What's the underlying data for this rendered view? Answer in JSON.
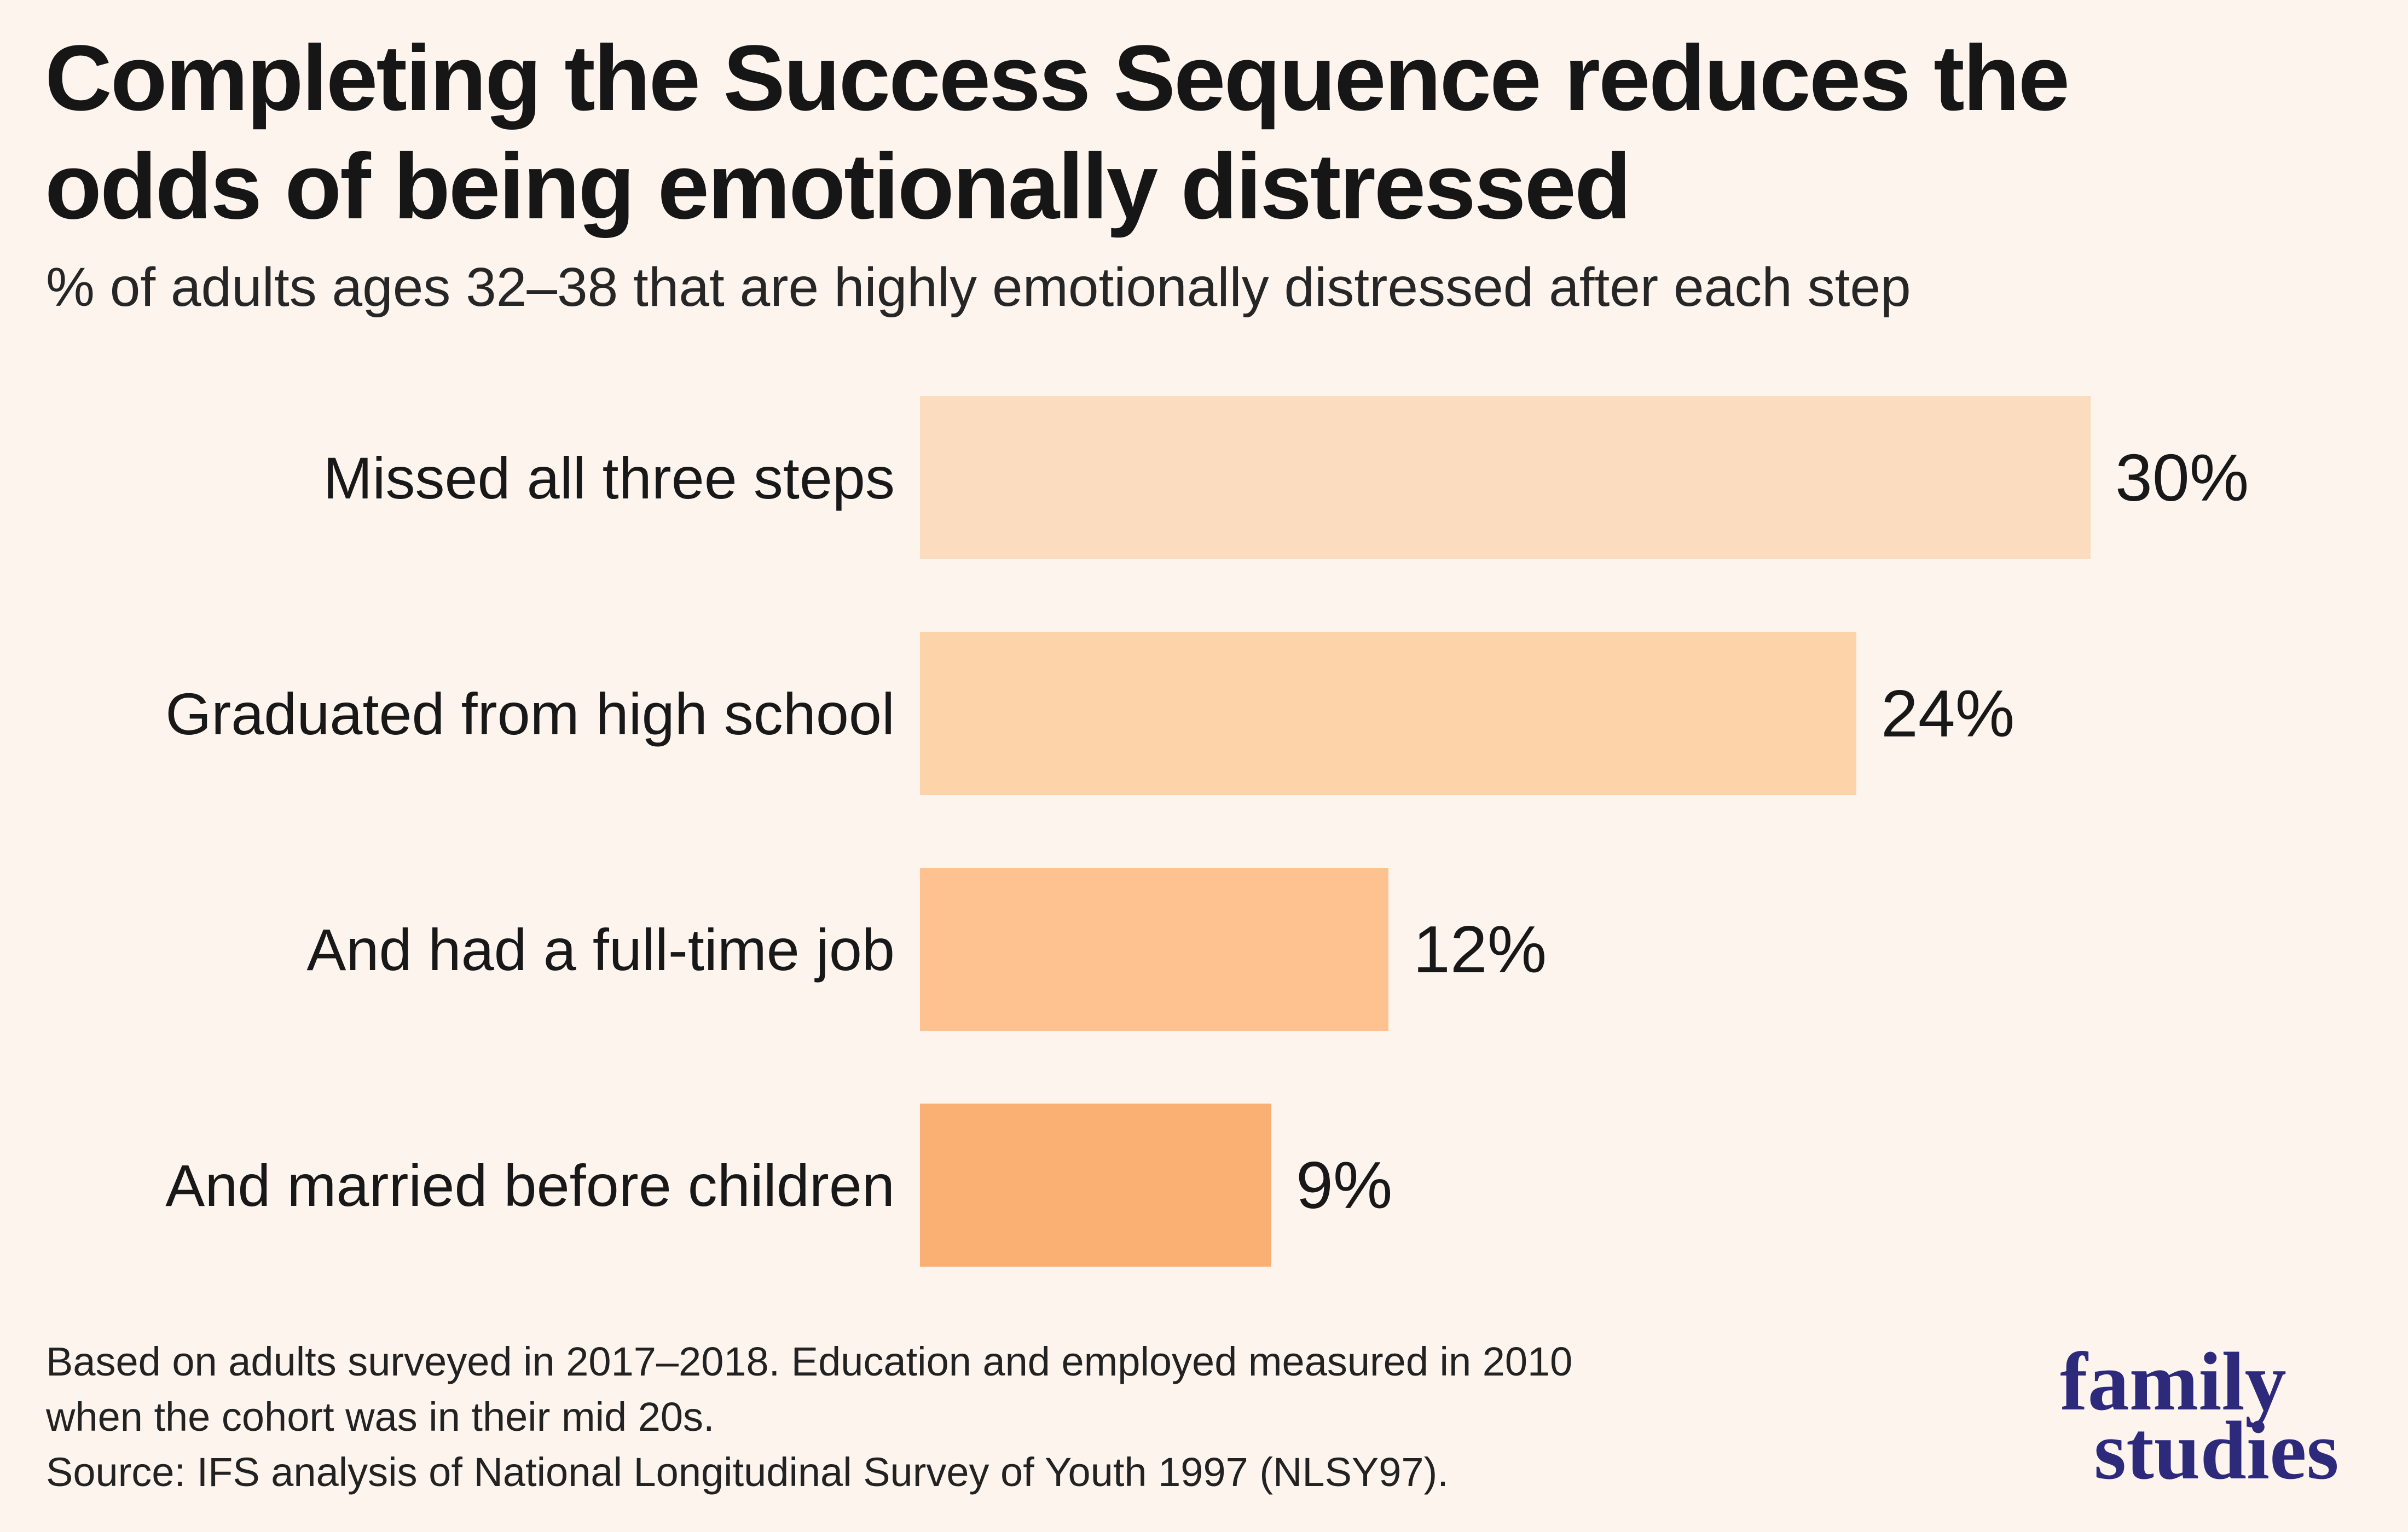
{
  "page": {
    "background": "#fdf4ee",
    "text_color": "#1b1b1b"
  },
  "header": {
    "title_lines": [
      "Completing the Success Sequence reduces the",
      "odds of being emotionally distressed"
    ],
    "subtitle": "% of adults ages 32–38 that are highly emotionally distressed after each step"
  },
  "chart_data": {
    "type": "bar",
    "orientation": "horizontal",
    "title": "Completing the Success Sequence reduces the odds of being emotionally distressed",
    "subtitle": "% of adults ages 32–38 that are highly emotionally distressed after each step",
    "categories": [
      "Missed all three steps",
      "Graduated from high school",
      "And had a full-time job",
      "And married before children"
    ],
    "values": [
      30,
      24,
      12,
      9
    ],
    "value_labels": [
      "30%",
      "24%",
      "12%",
      "9%"
    ],
    "xlim": [
      0,
      30
    ],
    "bar_colors": [
      "#fcdcbe",
      "#fdd3a9",
      "#fdc28f",
      "#faaf73"
    ],
    "grid": false,
    "legend": false
  },
  "footer": {
    "note_lines": [
      "Based on adults surveyed in 2017–2018. Education and employed measured in 2010",
      "when the cohort was in their mid 20s."
    ],
    "source_line": "Source: IFS analysis of National Longitudinal Survey of Youth 1997 (NLSY97)."
  },
  "logo": {
    "line1": "family",
    "line2": "studies",
    "color": "#2d2a7c"
  }
}
